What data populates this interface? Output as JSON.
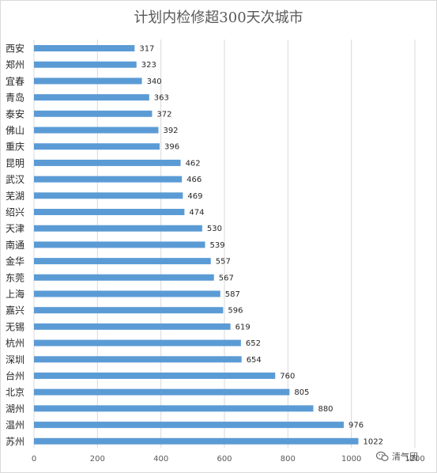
{
  "chart_data": {
    "type": "bar",
    "orientation": "horizontal",
    "title": "计划内检修超300天次城市",
    "categories": [
      "西安",
      "郑州",
      "宜春",
      "青岛",
      "泰安",
      "佛山",
      "重庆",
      "昆明",
      "武汉",
      "芜湖",
      "绍兴",
      "天津",
      "南通",
      "金华",
      "东莞",
      "上海",
      "嘉兴",
      "无锡",
      "杭州",
      "深圳",
      "台州",
      "北京",
      "湖州",
      "温州",
      "苏州"
    ],
    "values": [
      317,
      323,
      340,
      363,
      372,
      392,
      396,
      462,
      466,
      469,
      474,
      530,
      539,
      557,
      567,
      587,
      596,
      619,
      652,
      654,
      760,
      805,
      880,
      976,
      1022
    ],
    "xlim": [
      0,
      1200
    ],
    "x_ticks": [
      "0",
      "200",
      "400",
      "600",
      "800",
      "1000",
      "1200"
    ],
    "xlabel": "",
    "ylabel": "",
    "grid": "vertical",
    "legend": "none",
    "bar_color": "#5b9bd5",
    "grid_color": "#d9d9d9"
  },
  "watermark": {
    "icon": "wechat-bubble-icon",
    "text": "清气团"
  }
}
